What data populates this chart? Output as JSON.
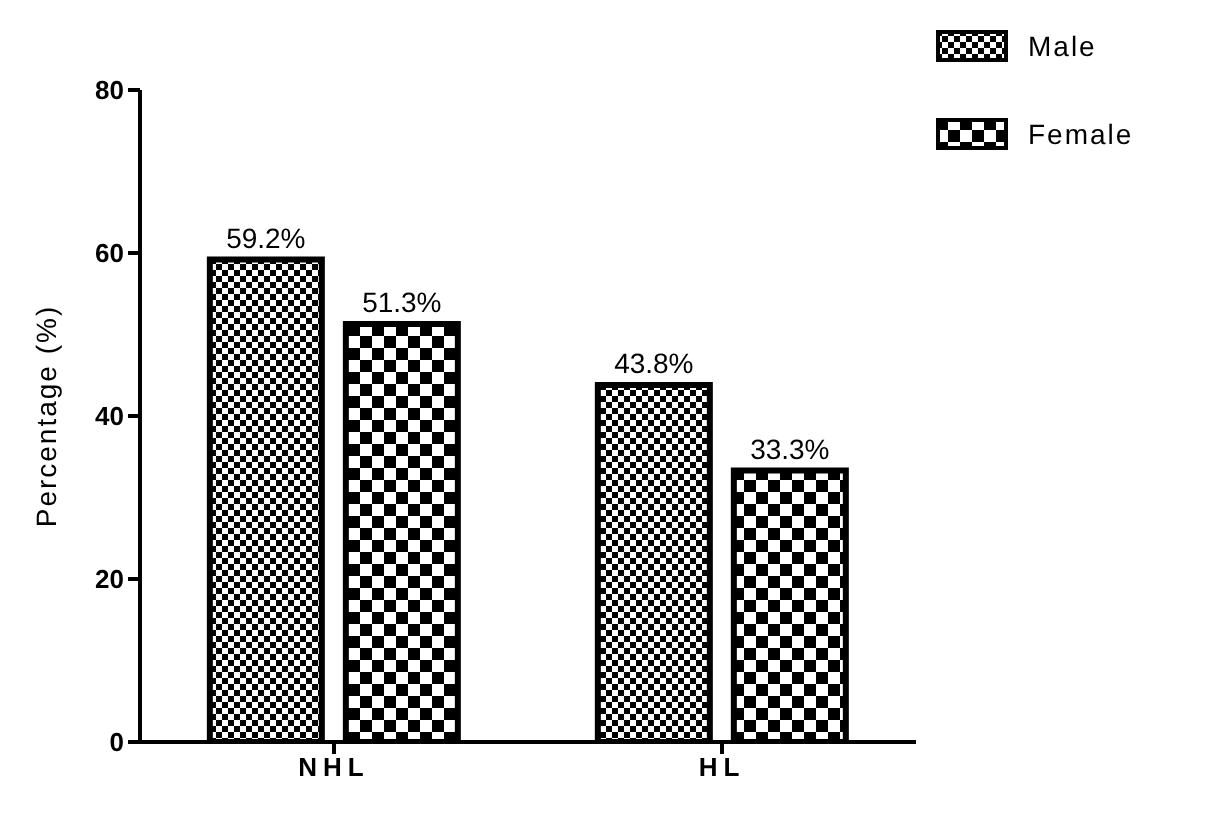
{
  "chart_data": {
    "type": "bar",
    "ylabel": "Percentage (%)",
    "categories": [
      "NHL",
      "HL"
    ],
    "series": [
      {
        "name": "Male",
        "color": "#000000",
        "values": [
          59.2,
          43.8
        ],
        "value_labels": [
          "59.2%",
          "43.8%"
        ]
      },
      {
        "name": "Female",
        "color": "#000000",
        "values": [
          51.3,
          33.3
        ],
        "value_labels": [
          "51.3%",
          "33.3%"
        ]
      }
    ],
    "ylim": [
      0,
      80
    ],
    "yticks": [
      0,
      20,
      40,
      60,
      80
    ],
    "grid": false,
    "legend": "top right"
  }
}
